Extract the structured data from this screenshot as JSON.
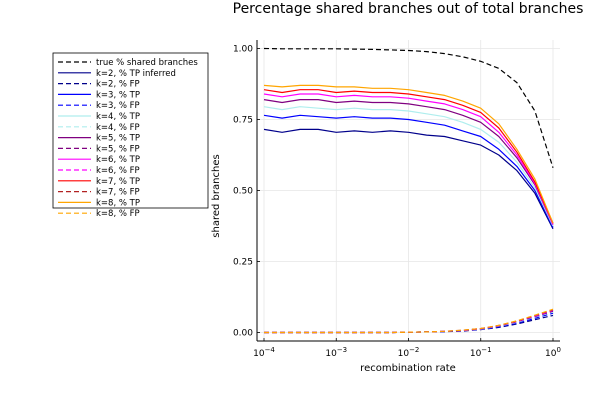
{
  "chart_data": {
    "type": "line",
    "title": "Percentage shared branches out of total branches",
    "xlabel": "recombination rate",
    "ylabel": "shared branches",
    "xscale": "log10",
    "xlim": [
      8e-05,
      1.25
    ],
    "ylim": [
      -0.03,
      1.03
    ],
    "x_ticks": [
      {
        "value": 0.0001,
        "label_base": "10",
        "label_exp": "−4"
      },
      {
        "value": 0.001,
        "label_base": "10",
        "label_exp": "−3"
      },
      {
        "value": 0.01,
        "label_base": "10",
        "label_exp": "−2"
      },
      {
        "value": 0.1,
        "label_base": "10",
        "label_exp": "−1"
      },
      {
        "value": 1,
        "label_base": "10",
        "label_exp": "0"
      }
    ],
    "y_ticks": [
      {
        "value": 0.0,
        "label": "0.00"
      },
      {
        "value": 0.25,
        "label": "0.25"
      },
      {
        "value": 0.5,
        "label": "0.50"
      },
      {
        "value": 0.75,
        "label": "0.75"
      },
      {
        "value": 1.0,
        "label": "1.00"
      }
    ],
    "grid": true,
    "legend_position": "outside-left",
    "x": [
      0.0001,
      0.000178,
      0.000316,
      0.000562,
      0.001,
      0.00178,
      0.00316,
      0.00562,
      0.01,
      0.0178,
      0.0316,
      0.0562,
      0.1,
      0.178,
      0.316,
      0.562,
      1.0
    ],
    "series": [
      {
        "name": "true % shared branches",
        "color": "#000000",
        "dash": "dashed",
        "values": [
          1.0,
          0.999,
          0.999,
          0.999,
          0.999,
          0.998,
          0.997,
          0.995,
          0.993,
          0.989,
          0.982,
          0.971,
          0.955,
          0.93,
          0.88,
          0.78,
          0.58
        ]
      },
      {
        "name": "k=2, % TP inferred",
        "color": "#00008B",
        "dash": "solid",
        "values": [
          0.715,
          0.705,
          0.715,
          0.715,
          0.705,
          0.71,
          0.705,
          0.71,
          0.705,
          0.695,
          0.69,
          0.675,
          0.66,
          0.625,
          0.57,
          0.49,
          0.365
        ]
      },
      {
        "name": "k=2, % FP",
        "color": "#00008B",
        "dash": "dashed",
        "values": [
          0.0,
          0.0,
          0.0,
          0.0,
          0.0,
          0.0,
          0.0,
          0.0,
          0.001,
          0.002,
          0.003,
          0.005,
          0.01,
          0.018,
          0.03,
          0.045,
          0.06
        ]
      },
      {
        "name": "k=3, % TP",
        "color": "#0000FF",
        "dash": "solid",
        "values": [
          0.765,
          0.755,
          0.765,
          0.76,
          0.755,
          0.76,
          0.755,
          0.755,
          0.75,
          0.74,
          0.73,
          0.71,
          0.69,
          0.645,
          0.585,
          0.5,
          0.37
        ]
      },
      {
        "name": "k=3, % FP",
        "color": "#0000FF",
        "dash": "dashed",
        "values": [
          0.0,
          0.0,
          0.0,
          0.0,
          0.0,
          0.0,
          0.0,
          0.0,
          0.001,
          0.002,
          0.003,
          0.006,
          0.011,
          0.02,
          0.033,
          0.05,
          0.068
        ]
      },
      {
        "name": "k=4, % TP",
        "color": "#AFEEEE",
        "dash": "solid",
        "values": [
          0.795,
          0.785,
          0.795,
          0.79,
          0.785,
          0.79,
          0.785,
          0.785,
          0.78,
          0.77,
          0.76,
          0.74,
          0.715,
          0.67,
          0.6,
          0.51,
          0.375
        ]
      },
      {
        "name": "k=4, % FP",
        "color": "#AFEEEE",
        "dash": "dashed",
        "values": [
          0.0,
          0.0,
          0.0,
          0.0,
          0.0,
          0.0,
          0.0,
          0.0,
          0.001,
          0.002,
          0.004,
          0.007,
          0.012,
          0.022,
          0.036,
          0.054,
          0.072
        ]
      },
      {
        "name": "k=5, % TP",
        "color": "#800080",
        "dash": "solid",
        "values": [
          0.82,
          0.81,
          0.82,
          0.82,
          0.81,
          0.815,
          0.81,
          0.81,
          0.805,
          0.795,
          0.785,
          0.765,
          0.74,
          0.69,
          0.615,
          0.52,
          0.38
        ]
      },
      {
        "name": "k=5, % FP",
        "color": "#800080",
        "dash": "dashed",
        "values": [
          0.0,
          0.0,
          0.0,
          0.0,
          0.0,
          0.0,
          0.0,
          0.0,
          0.001,
          0.002,
          0.004,
          0.007,
          0.013,
          0.023,
          0.038,
          0.056,
          0.075
        ]
      },
      {
        "name": "k=6, % TP",
        "color": "#FF00FF",
        "dash": "solid",
        "values": [
          0.84,
          0.83,
          0.84,
          0.84,
          0.83,
          0.835,
          0.83,
          0.83,
          0.825,
          0.815,
          0.805,
          0.785,
          0.76,
          0.705,
          0.625,
          0.525,
          0.38
        ]
      },
      {
        "name": "k=6, % FP",
        "color": "#FF00FF",
        "dash": "dashed",
        "values": [
          0.0,
          0.0,
          0.0,
          0.0,
          0.0,
          0.0,
          0.0,
          0.0,
          0.001,
          0.002,
          0.004,
          0.007,
          0.013,
          0.024,
          0.039,
          0.058,
          0.078
        ]
      },
      {
        "name": "k=7, % TP",
        "color": "#FF0000",
        "dash": "solid",
        "values": [
          0.855,
          0.845,
          0.855,
          0.855,
          0.845,
          0.85,
          0.845,
          0.845,
          0.84,
          0.83,
          0.82,
          0.8,
          0.775,
          0.72,
          0.635,
          0.53,
          0.385
        ]
      },
      {
        "name": "k=7, % FP",
        "color": "#B22222",
        "dash": "dashed",
        "values": [
          0.0,
          0.0,
          0.0,
          0.0,
          0.0,
          0.0,
          0.0,
          0.0,
          0.001,
          0.002,
          0.004,
          0.008,
          0.014,
          0.025,
          0.04,
          0.06,
          0.08
        ]
      },
      {
        "name": "k=8, % TP",
        "color": "#FFA500",
        "dash": "solid",
        "values": [
          0.87,
          0.865,
          0.87,
          0.87,
          0.865,
          0.865,
          0.86,
          0.86,
          0.855,
          0.845,
          0.835,
          0.815,
          0.79,
          0.735,
          0.645,
          0.54,
          0.385
        ]
      },
      {
        "name": "k=8, % FP",
        "color": "#FFA500",
        "dash": "dashed",
        "values": [
          0.0,
          0.0,
          0.0,
          0.0,
          0.0,
          0.0,
          0.0,
          0.0,
          0.001,
          0.002,
          0.004,
          0.008,
          0.014,
          0.025,
          0.041,
          0.061,
          0.082
        ]
      }
    ]
  }
}
